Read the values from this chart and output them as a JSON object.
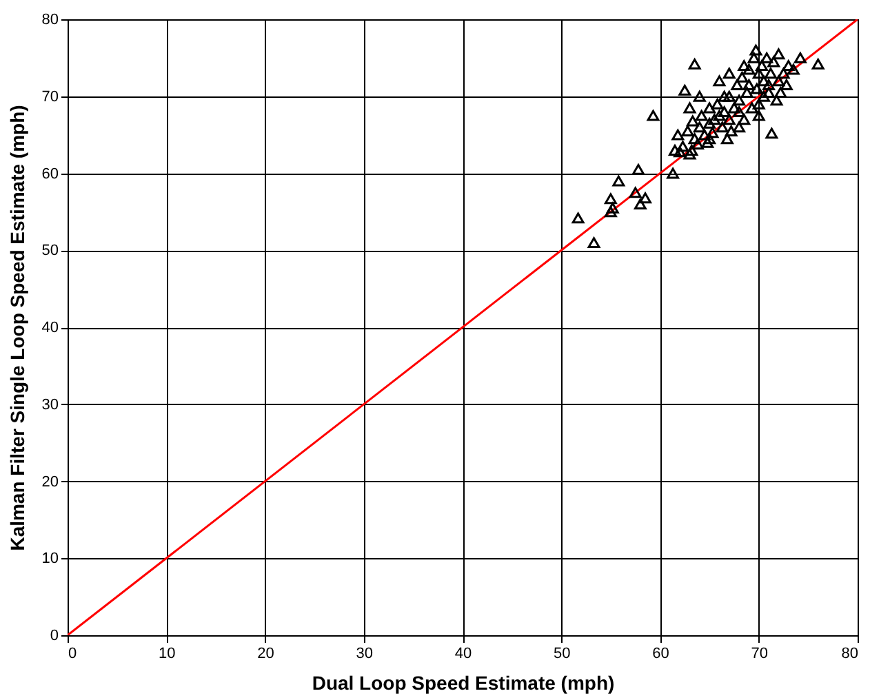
{
  "chart_data": {
    "type": "scatter",
    "xlabel": "Dual Loop Speed Estimate (mph)",
    "ylabel": "Kalman Filter Single Loop Speed Estimate (mph)",
    "xlim": [
      0,
      80
    ],
    "ylim": [
      0,
      80
    ],
    "xticks": [
      0,
      10,
      20,
      30,
      40,
      50,
      60,
      70,
      80
    ],
    "yticks": [
      0,
      10,
      20,
      30,
      40,
      50,
      60,
      70,
      80
    ],
    "grid": true,
    "marker": "triangle",
    "series": [
      {
        "color": "#000000",
        "x": [
          51.7,
          53.3,
          55,
          55.2,
          55,
          55.8,
          57.5,
          57.8,
          58,
          58.5,
          59.3,
          61.3,
          61.5,
          61.8,
          62.3,
          62.5,
          63.5,
          62.8,
          63,
          63.2,
          63.5,
          64,
          64.2,
          64.5,
          65,
          65,
          65.5,
          65.8,
          66,
          66.3,
          66.5,
          67,
          67,
          67.5,
          67.8,
          68,
          68,
          68.3,
          68.5,
          68.8,
          69,
          69.3,
          69.5,
          69.7,
          69.8,
          70,
          70,
          70.3,
          70.5,
          70.8,
          71,
          71.2,
          71.3,
          71.5,
          71.8,
          72,
          72,
          72.5,
          72.8,
          73,
          73.5,
          74.2,
          76,
          63.8,
          64.8,
          65.3,
          66,
          66.8,
          67.2,
          62,
          63,
          64,
          65,
          66.5,
          68,
          69,
          70.5,
          71,
          72.2,
          63.3,
          67,
          68.5,
          70
        ],
        "values": [
          54.2,
          51,
          55,
          55.5,
          56.7,
          59,
          57.5,
          60.5,
          56,
          56.8,
          67.5,
          60,
          63,
          65,
          63.5,
          70.8,
          74.2,
          65.5,
          62.5,
          63,
          64.5,
          66,
          67.5,
          65,
          66.5,
          68.5,
          67,
          69,
          72,
          66,
          68,
          70,
          67,
          68.5,
          71.5,
          66,
          69.5,
          72.5,
          67,
          70.5,
          73.5,
          68.5,
          75,
          76,
          71,
          73,
          69,
          74,
          72,
          75,
          70.5,
          73,
          65.2,
          74.5,
          69.5,
          72,
          75.5,
          73,
          71.5,
          74,
          73.5,
          75,
          74.2,
          63.8,
          64,
          65.3,
          67.5,
          64.5,
          65.5,
          62.8,
          68.5,
          70,
          64.5,
          70,
          68,
          71.5,
          70,
          71.5,
          70.5,
          66.8,
          73,
          74,
          67.5
        ]
      },
      {
        "type": "line",
        "color": "#ff0000",
        "marker": "none",
        "x": [
          0,
          80
        ],
        "values": [
          0,
          80
        ]
      }
    ]
  }
}
